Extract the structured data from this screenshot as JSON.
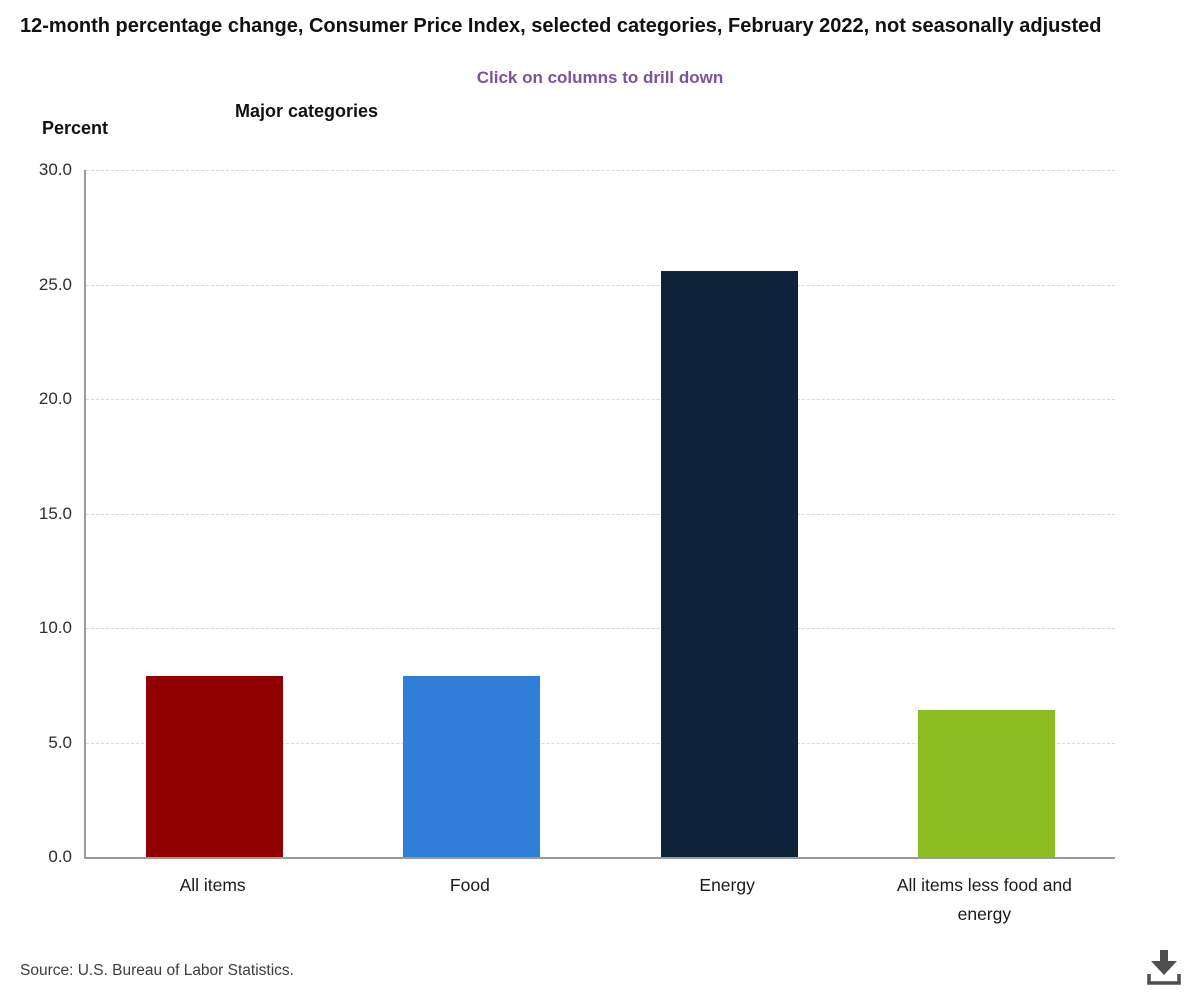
{
  "title": "12-month percentage change, Consumer Price Index, selected categories, February 2022, not seasonally adjusted",
  "instruction": "Click on columns to drill down",
  "y_axis_title": "Percent",
  "x_axis_title": "Major categories",
  "source": "Source: U.S. Bureau of Labor Statistics.",
  "icons": {
    "download": "download-icon"
  },
  "colors": {
    "instruction_text": "#7a549b",
    "axis_line": "#9a9a9a",
    "gridline": "#d8d8d8",
    "title_text": "#111111",
    "download_icon": "#4f4f4f"
  },
  "chart_data": {
    "type": "bar",
    "title": "12-month percentage change, Consumer Price Index, selected categories, February 2022, not seasonally adjusted",
    "xlabel": "Major categories",
    "ylabel": "Percent",
    "categories": [
      "All items",
      "Food",
      "Energy",
      "All items less food and energy"
    ],
    "values": [
      7.9,
      7.9,
      25.6,
      6.4
    ],
    "bar_colors": [
      "#910000",
      "#2f7ed8",
      "#0d233a",
      "#8bbc21"
    ],
    "ylim": [
      0,
      30
    ],
    "yticks": [
      0,
      5,
      10,
      15,
      20,
      25,
      30
    ],
    "ytick_labels": [
      "0.0",
      "5.0",
      "10.0",
      "15.0",
      "20.0",
      "25.0",
      "30.0"
    ],
    "grid": "horizontal dashed",
    "legend": "none"
  }
}
